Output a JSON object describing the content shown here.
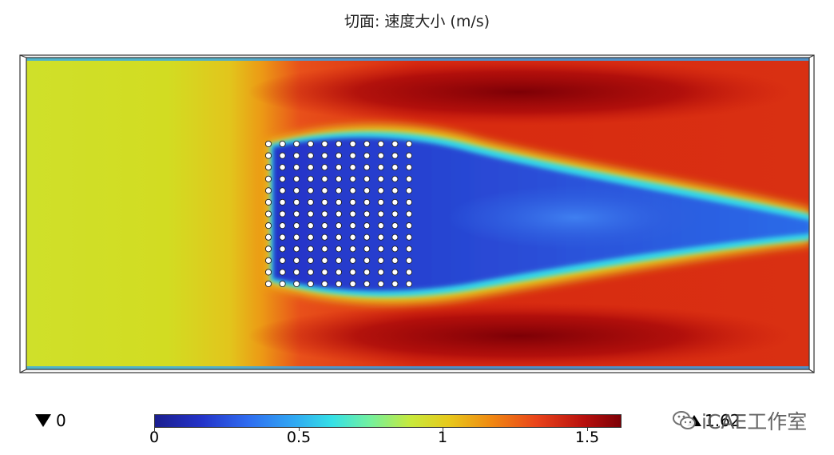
{
  "title": "切面: 速度大小 (m/s)",
  "legend": {
    "min_label": "0",
    "max_label": "1.62",
    "ticks": [
      "0",
      "0.5",
      "1",
      "1.5"
    ],
    "range": [
      0,
      1.62
    ],
    "colormap": [
      "#1b1e8f",
      "#2433c8",
      "#2f6cf0",
      "#30a9f2",
      "#35e0e6",
      "#72f0a0",
      "#c8e93b",
      "#e7c91b",
      "#f08a12",
      "#e9431a",
      "#b8100d",
      "#7d0006"
    ]
  },
  "cylinder_array": {
    "rows": 13,
    "cols": 11
  },
  "watermark": {
    "text": "iCAE工作室",
    "icon": "wechat-icon"
  }
}
